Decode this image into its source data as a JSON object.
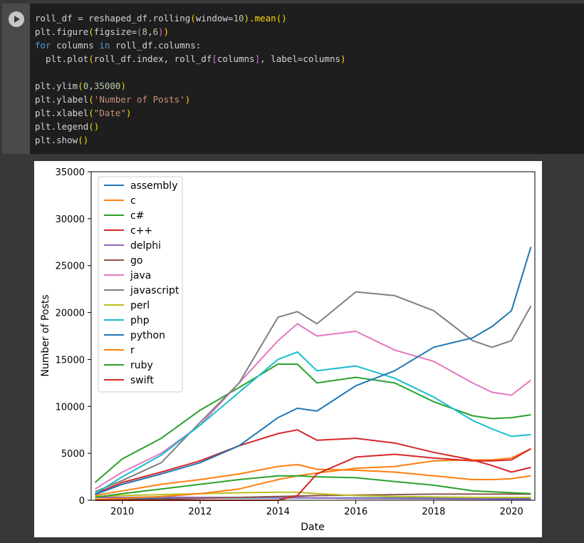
{
  "code": {
    "l1": {
      "a": "roll_df = reshaped_df.rolling",
      "b": "(",
      "c": "window=",
      "d": "10",
      "e": ").mean",
      "f": "()"
    },
    "l2": {
      "a": "plt.figure",
      "b": "(",
      "c": "figsize=",
      "d": "(",
      "e": "8",
      "f": ",",
      "g": "6",
      "h": ")",
      "i": ")"
    },
    "l3": {
      "kw1": "for",
      "a": " columns ",
      "kw2": "in",
      "b": " roll_df.columns:"
    },
    "l4": {
      "a": "  plt.plot",
      "b": "(",
      "c": "roll_df.index, roll_df",
      "d": "[",
      "e": "columns",
      "f": "]",
      "g": ", label=columns",
      "h": ")"
    },
    "l6": {
      "a": "plt.ylim",
      "b": "(",
      "c": "0",
      "d": ",",
      "e": "35000",
      "f": ")"
    },
    "l7": {
      "a": "plt.ylabel",
      "b": "(",
      "c": "'Number of Posts'",
      "d": ")"
    },
    "l8": {
      "a": "plt.xlabel",
      "b": "(",
      "c": "\"Date\"",
      "d": ")"
    },
    "l9": {
      "a": "plt.legend",
      "b": "()"
    },
    "l10": {
      "a": "plt.show",
      "b": "()"
    }
  },
  "colors": {
    "editor_bg": "#1e1e1e",
    "keyword": "#569cd6",
    "number": "#b5cea8",
    "string": "#ce9178",
    "paren": "#ffd700"
  },
  "chart_data": {
    "type": "line",
    "xlabel": "Date",
    "ylabel": "Number of Posts",
    "xlim": [
      2009.2,
      2020.6
    ],
    "ylim": [
      0,
      35000
    ],
    "x_ticks": [
      2010,
      2012,
      2014,
      2016,
      2018,
      2020
    ],
    "y_ticks": [
      0,
      5000,
      10000,
      15000,
      20000,
      25000,
      30000,
      35000
    ],
    "legend_position": "upper-left",
    "x": [
      2009.3,
      2010,
      2011,
      2012,
      2013,
      2014,
      2014.5,
      2015,
      2016,
      2017,
      2018,
      2019,
      2019.5,
      2020,
      2020.5
    ],
    "series": [
      {
        "name": "assembly",
        "color": "#1f77b4",
        "values": [
          100,
          150,
          200,
          250,
          250,
          250,
          260,
          250,
          250,
          240,
          230,
          220,
          210,
          200,
          190
        ]
      },
      {
        "name": "c",
        "color": "#ff7f0e",
        "values": [
          500,
          1000,
          1700,
          2200,
          2800,
          3600,
          3800,
          3300,
          3200,
          3000,
          2600,
          2200,
          2200,
          2300,
          2600
        ]
      },
      {
        "name": "c#",
        "color": "#2ca02c",
        "values": [
          1900,
          4400,
          6600,
          9600,
          12000,
          14500,
          14500,
          12500,
          13100,
          12500,
          10500,
          9000,
          8700,
          8800,
          9100
        ]
      },
      {
        "name": "c++",
        "color": "#d62728",
        "values": [
          700,
          1900,
          3000,
          4200,
          5800,
          7100,
          7500,
          6400,
          6600,
          6100,
          5100,
          4300,
          3700,
          3000,
          3500
        ]
      },
      {
        "name": "delphi",
        "color": "#9467bd",
        "values": [
          300,
          300,
          350,
          300,
          300,
          300,
          300,
          250,
          200,
          180,
          150,
          130,
          120,
          110,
          110
        ]
      },
      {
        "name": "go",
        "color": "#8c564b",
        "values": [
          0,
          50,
          100,
          200,
          300,
          400,
          450,
          500,
          550,
          600,
          650,
          650,
          650,
          650,
          650
        ]
      },
      {
        "name": "java",
        "color": "#e377c2",
        "values": [
          1200,
          3000,
          5000,
          8000,
          12500,
          17000,
          18800,
          17500,
          18000,
          16000,
          14800,
          12500,
          11500,
          11200,
          12800
        ]
      },
      {
        "name": "javascript",
        "color": "#7f7f7f",
        "values": [
          900,
          2100,
          4000,
          8300,
          12500,
          19500,
          20100,
          18800,
          22200,
          21800,
          20200,
          17000,
          16300,
          17000,
          20700
        ]
      },
      {
        "name": "perl",
        "color": "#bcbd22",
        "values": [
          400,
          500,
          600,
          700,
          800,
          850,
          850,
          700,
          500,
          400,
          350,
          300,
          300,
          300,
          300
        ]
      },
      {
        "name": "php",
        "color": "#17becf",
        "values": [
          700,
          2500,
          4800,
          8000,
          11500,
          15000,
          15800,
          13800,
          14300,
          13000,
          11000,
          8500,
          7600,
          6800,
          7000
        ]
      },
      {
        "name": "python",
        "color": "#1f77b4",
        "values": [
          600,
          1700,
          2800,
          4000,
          5800,
          8800,
          9800,
          9500,
          12200,
          13800,
          16300,
          17300,
          18500,
          20200,
          27000
        ]
      },
      {
        "name": "r",
        "color": "#ff7f0e",
        "values": [
          100,
          200,
          400,
          700,
          1200,
          2200,
          2600,
          2900,
          3400,
          3600,
          4200,
          4300,
          4300,
          4500,
          5500
        ]
      },
      {
        "name": "ruby",
        "color": "#2ca02c",
        "values": [
          300,
          700,
          1200,
          1700,
          2200,
          2600,
          2600,
          2500,
          2400,
          2000,
          1600,
          1000,
          900,
          800,
          700
        ]
      },
      {
        "name": "swift",
        "color": "#d62728",
        "values": [
          0,
          0,
          0,
          0,
          0,
          0,
          500,
          2800,
          4600,
          4900,
          4500,
          4200,
          4200,
          4300,
          5500
        ]
      }
    ]
  }
}
